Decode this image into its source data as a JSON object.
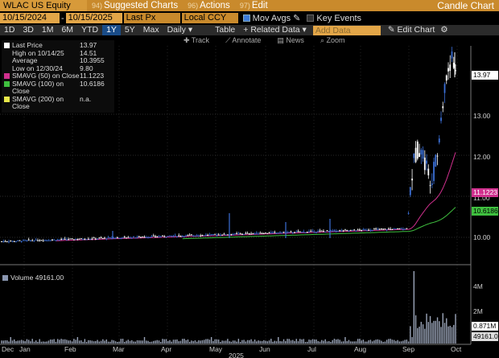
{
  "topbar": {
    "ticker": "WLAC US Equity",
    "menus": [
      {
        "num": "94)",
        "label": "Suggested Charts"
      },
      {
        "num": "96)",
        "label": "Actions"
      },
      {
        "num": "97)",
        "label": "Edit"
      }
    ],
    "title": "Candle Chart"
  },
  "controls": {
    "start_date": "10/15/2024",
    "end_date": "10/15/2025",
    "field": "Last Px",
    "currency": "Local CCY",
    "mov_avgs": "Mov Avgs",
    "key_events": "Key Events"
  },
  "periods": [
    "1D",
    "3D",
    "1M",
    "6M",
    "YTD",
    "1Y",
    "5Y",
    "Max"
  ],
  "period_selected": "1Y",
  "toolbar": {
    "frequency": "Daily",
    "table": "Table",
    "related": "Related Data",
    "add_data_placeholder": "Add Data",
    "edit_chart": "Edit Chart"
  },
  "tools": [
    "Track",
    "Annotate",
    "News",
    "Zoom"
  ],
  "legend": [
    {
      "label": "Last Price",
      "value": "13.97",
      "color": "#ffffff"
    },
    {
      "label": "High on 10/14/25",
      "value": "14.51",
      "color": ""
    },
    {
      "label": "Average",
      "value": "10.3955",
      "color": ""
    },
    {
      "label": "Low on 12/30/24",
      "value": "9.80",
      "color": ""
    },
    {
      "label": "SMAVG (50)  on Close",
      "value": "11.1223",
      "color": "#d0308e"
    },
    {
      "label": "SMAVG (100)  on Close",
      "value": "10.6186",
      "color": "#3fbf3f"
    },
    {
      "label": "SMAVG (200)  on Close",
      "value": "n.a.",
      "color": "#e8e84a"
    }
  ],
  "volume_legend": {
    "label": "Volume",
    "value": "49161.00"
  },
  "right_axis": {
    "ticks": [
      "13.00",
      "12.00",
      "11.00",
      "10.00"
    ],
    "last_tag": "13.97",
    "sma50_tag": "11.1223",
    "sma100_tag": "10.6186",
    "vol_ticks": [
      "4M",
      "2M"
    ],
    "vol_tag1": "0.871M",
    "vol_tag2": "49161.00"
  },
  "x_axis": {
    "months": [
      "Dec",
      "Jan",
      "Feb",
      "Mar",
      "Apr",
      "May",
      "Jun",
      "Jul",
      "Aug",
      "Sep",
      "Oct"
    ],
    "year": "2025"
  },
  "colors": {
    "up": "#ffffff",
    "down": "#3b6fd6",
    "sma50": "#d0308e",
    "sma100": "#3fbf3f"
  }
}
